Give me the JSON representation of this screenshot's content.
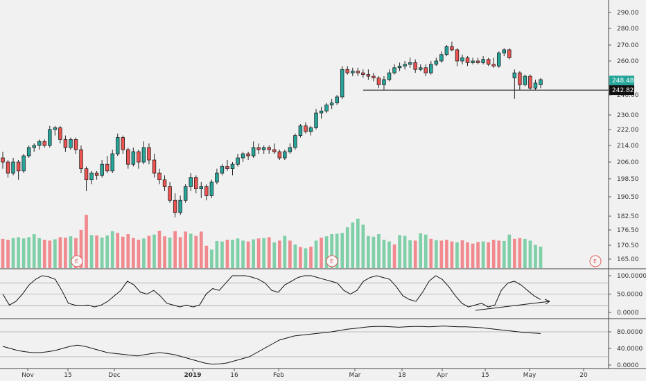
{
  "chart_data": {
    "type": "candlestick",
    "price_axis": {
      "ticks": [
        "290.00",
        "280.00",
        "270.00",
        "260.00",
        "240.00",
        "230.00",
        "222.00",
        "214.00",
        "206.00",
        "198.50",
        "190.50",
        "182.50",
        "176.50",
        "170.50",
        "165.00"
      ],
      "tick_values": [
        290,
        280,
        270,
        260,
        240,
        230,
        222,
        214,
        206,
        198.5,
        190.5,
        182.5,
        176.5,
        170.5,
        165
      ]
    },
    "last_price_tag": {
      "label": "248.48",
      "color": "#26a69a"
    },
    "level_tag": {
      "label": "242.82"
    },
    "level_line": {
      "value": 242.82,
      "from": "Mar 7"
    },
    "date_labels": [
      "Nov",
      "15",
      "Dec",
      "2019",
      "16",
      "Feb",
      "Mar",
      "18",
      "Apr",
      "15",
      "May",
      "20"
    ],
    "earnings_marker": "E",
    "candles": [
      [
        208,
        211,
        203,
        206
      ],
      [
        206,
        207,
        199,
        201
      ],
      [
        201,
        208,
        200,
        206
      ],
      [
        206,
        207,
        198,
        202
      ],
      [
        202,
        210,
        201,
        209
      ],
      [
        209,
        214,
        208,
        213
      ],
      [
        213,
        215,
        211,
        214
      ],
      [
        214,
        217,
        212,
        216
      ],
      [
        216,
        217,
        213,
        214
      ],
      [
        214,
        224,
        213,
        222
      ],
      [
        222,
        224,
        219,
        223
      ],
      [
        223,
        224,
        215,
        217
      ],
      [
        217,
        219,
        211,
        213
      ],
      [
        213,
        218,
        212,
        217
      ],
      [
        217,
        218,
        210,
        212
      ],
      [
        212,
        214,
        201,
        203
      ],
      [
        203,
        204,
        193,
        198
      ],
      [
        198,
        202,
        196,
        201
      ],
      [
        201,
        202,
        198,
        200
      ],
      [
        200,
        207,
        199,
        205
      ],
      [
        205,
        209,
        201,
        202
      ],
      [
        202,
        212,
        201,
        210
      ],
      [
        210,
        220,
        209,
        218
      ],
      [
        218,
        219,
        210,
        212
      ],
      [
        212,
        213,
        203,
        205
      ],
      [
        205,
        213,
        204,
        211
      ],
      [
        211,
        212,
        203,
        206
      ],
      [
        206,
        216,
        205,
        213
      ],
      [
        213,
        215,
        205,
        207
      ],
      [
        207,
        210,
        199,
        201
      ],
      [
        201,
        203,
        196,
        198
      ],
      [
        198,
        200,
        193,
        195
      ],
      [
        195,
        197,
        188,
        189
      ],
      [
        189,
        192,
        182,
        184
      ],
      [
        184,
        191,
        183,
        189
      ],
      [
        189,
        196,
        188,
        195
      ],
      [
        195,
        201,
        193,
        199
      ],
      [
        199,
        200,
        192,
        194
      ],
      [
        194,
        197,
        190,
        195
      ],
      [
        195,
        196,
        189,
        191
      ],
      [
        191,
        198,
        190,
        197
      ],
      [
        197,
        203,
        196,
        201
      ],
      [
        201,
        205,
        200,
        204
      ],
      [
        204,
        207,
        202,
        203
      ],
      [
        203,
        206,
        200,
        205
      ],
      [
        205,
        210,
        204,
        208
      ],
      [
        208,
        211,
        206,
        210
      ],
      [
        210,
        211,
        207,
        209
      ],
      [
        209,
        216,
        208,
        213
      ],
      [
        213,
        215,
        210,
        212
      ],
      [
        212,
        214,
        210,
        213
      ],
      [
        213,
        214,
        210,
        212
      ],
      [
        212,
        215,
        210,
        211
      ],
      [
        211,
        212,
        207,
        208
      ],
      [
        208,
        212,
        207,
        211
      ],
      [
        211,
        215,
        210,
        213
      ],
      [
        213,
        220,
        212,
        219
      ],
      [
        219,
        225,
        218,
        224
      ],
      [
        224,
        226,
        220,
        221
      ],
      [
        221,
        224,
        219,
        223
      ],
      [
        223,
        233,
        222,
        231
      ],
      [
        231,
        234,
        228,
        232
      ],
      [
        232,
        236,
        231,
        235
      ],
      [
        235,
        238,
        233,
        236
      ],
      [
        236,
        240,
        235,
        239
      ],
      [
        239,
        257,
        238,
        255
      ],
      [
        255,
        257,
        252,
        253
      ],
      [
        253,
        256,
        251,
        254
      ],
      [
        254,
        256,
        251,
        253
      ],
      [
        253,
        255,
        250,
        252
      ],
      [
        252,
        255,
        249,
        251
      ],
      [
        251,
        253,
        248,
        250
      ],
      [
        250,
        251,
        244,
        246
      ],
      [
        246,
        251,
        243,
        249
      ],
      [
        249,
        255,
        248,
        253
      ],
      [
        253,
        258,
        252,
        256
      ],
      [
        256,
        259,
        254,
        257
      ],
      [
        257,
        260,
        255,
        258
      ],
      [
        258,
        262,
        256,
        259
      ],
      [
        259,
        261,
        253,
        255
      ],
      [
        255,
        258,
        254,
        256
      ],
      [
        256,
        258,
        251,
        253
      ],
      [
        253,
        260,
        252,
        258
      ],
      [
        258,
        262,
        257,
        260
      ],
      [
        260,
        266,
        259,
        264
      ],
      [
        264,
        270,
        263,
        269
      ],
      [
        269,
        272,
        266,
        267
      ],
      [
        267,
        268,
        257,
        260
      ],
      [
        260,
        264,
        258,
        262
      ],
      [
        262,
        263,
        257,
        259
      ],
      [
        259,
        262,
        258,
        260
      ],
      [
        260,
        262,
        258,
        259
      ],
      [
        259,
        263,
        258,
        261
      ],
      [
        261,
        262,
        257,
        258
      ],
      [
        258,
        262,
        256,
        257
      ],
      [
        257,
        266,
        256,
        265
      ],
      [
        265,
        268,
        263,
        267
      ],
      [
        267,
        268,
        261,
        262
      ],
      [
        250,
        255,
        238,
        253
      ],
      [
        253,
        254,
        243,
        246
      ],
      [
        246,
        252,
        245,
        251
      ],
      [
        251,
        252,
        243,
        244
      ],
      [
        244,
        249,
        243,
        247
      ],
      [
        246,
        250,
        244,
        249
      ]
    ],
    "volumes": [
      [
        68,
        0
      ],
      [
        66,
        0
      ],
      [
        70,
        1
      ],
      [
        72,
        1
      ],
      [
        69,
        1
      ],
      [
        72,
        1
      ],
      [
        79,
        1
      ],
      [
        70,
        1
      ],
      [
        66,
        0
      ],
      [
        64,
        0
      ],
      [
        67,
        1
      ],
      [
        72,
        0
      ],
      [
        71,
        0
      ],
      [
        74,
        1
      ],
      [
        70,
        0
      ],
      [
        89,
        0
      ],
      [
        124,
        0
      ],
      [
        77,
        1
      ],
      [
        76,
        0
      ],
      [
        71,
        1
      ],
      [
        76,
        1
      ],
      [
        86,
        1
      ],
      [
        82,
        0
      ],
      [
        73,
        0
      ],
      [
        79,
        0
      ],
      [
        70,
        0
      ],
      [
        66,
        0
      ],
      [
        69,
        1
      ],
      [
        75,
        0
      ],
      [
        78,
        1
      ],
      [
        87,
        0
      ],
      [
        74,
        0
      ],
      [
        71,
        1
      ],
      [
        86,
        0
      ],
      [
        72,
        0
      ],
      [
        85,
        0
      ],
      [
        80,
        1
      ],
      [
        75,
        0
      ],
      [
        85,
        0
      ],
      [
        52,
        0
      ],
      [
        43,
        1
      ],
      [
        63,
        1
      ],
      [
        62,
        1
      ],
      [
        66,
        0
      ],
      [
        66,
        1
      ],
      [
        69,
        1
      ],
      [
        64,
        1
      ],
      [
        62,
        0
      ],
      [
        67,
        1
      ],
      [
        69,
        0
      ],
      [
        70,
        1
      ],
      [
        72,
        0
      ],
      [
        60,
        1
      ],
      [
        64,
        0
      ],
      [
        75,
        1
      ],
      [
        64,
        0
      ],
      [
        55,
        1
      ],
      [
        49,
        0
      ],
      [
        46,
        1
      ],
      [
        50,
        0
      ],
      [
        64,
        1
      ],
      [
        71,
        0
      ],
      [
        74,
        1
      ],
      [
        79,
        1
      ],
      [
        80,
        1
      ],
      [
        82,
        1
      ],
      [
        95,
        1
      ],
      [
        106,
        1
      ],
      [
        115,
        1
      ],
      [
        101,
        1
      ],
      [
        75,
        1
      ],
      [
        73,
        1
      ],
      [
        79,
        1
      ],
      [
        66,
        1
      ],
      [
        62,
        1
      ],
      [
        55,
        0
      ],
      [
        77,
        1
      ],
      [
        75,
        1
      ],
      [
        65,
        1
      ],
      [
        64,
        0
      ],
      [
        81,
        1
      ],
      [
        78,
        1
      ],
      [
        68,
        0
      ],
      [
        65,
        1
      ],
      [
        64,
        0
      ],
      [
        66,
        0
      ],
      [
        62,
        0
      ],
      [
        60,
        1
      ],
      [
        65,
        0
      ],
      [
        60,
        0
      ],
      [
        57,
        0
      ],
      [
        61,
        0
      ],
      [
        62,
        1
      ],
      [
        60,
        0
      ],
      [
        66,
        0
      ],
      [
        64,
        0
      ],
      [
        63,
        1
      ],
      [
        78,
        1
      ],
      [
        68,
        0
      ],
      [
        70,
        0
      ],
      [
        68,
        1
      ],
      [
        64,
        1
      ],
      [
        54,
        1
      ],
      [
        50,
        1
      ]
    ],
    "oscillator_axis": {
      "ticks": [
        "100.0000",
        "50.0000",
        "0.0000"
      ],
      "values": [
        100,
        50,
        0
      ]
    },
    "oscillator_line": [
      50,
      20,
      30,
      50,
      75,
      90,
      100,
      97,
      90,
      60,
      25,
      20,
      18,
      20,
      15,
      20,
      30,
      45,
      60,
      85,
      75,
      55,
      50,
      60,
      45,
      25,
      20,
      15,
      20,
      15,
      20,
      50,
      65,
      60,
      80,
      100,
      100,
      100,
      96,
      90,
      80,
      60,
      55,
      75,
      85,
      95,
      100,
      100,
      95,
      90,
      85,
      80,
      60,
      50,
      60,
      85,
      95,
      100,
      95,
      90,
      70,
      45,
      35,
      30,
      55,
      85,
      100,
      90,
      70,
      45,
      25,
      15,
      20,
      25,
      15,
      20,
      60,
      80,
      85,
      75,
      60,
      45,
      35
    ],
    "trendline_osc": {
      "from": 12,
      "to": 27
    },
    "second_axis": {
      "ticks": [
        "80.0000",
        "40.0000",
        "0.0000"
      ],
      "values": [
        80,
        40,
        0
      ]
    },
    "second_line": [
      45,
      40,
      35,
      32,
      30,
      30,
      32,
      35,
      40,
      45,
      48,
      45,
      40,
      35,
      30,
      28,
      26,
      24,
      22,
      25,
      28,
      30,
      28,
      25,
      20,
      15,
      10,
      5,
      2,
      3,
      5,
      10,
      15,
      20,
      30,
      40,
      50,
      60,
      65,
      70,
      72,
      74,
      76,
      78,
      80,
      83,
      86,
      88,
      90,
      92,
      93,
      93,
      92,
      91,
      92,
      93,
      93,
      92,
      93,
      94,
      93,
      92,
      92,
      91,
      90,
      88,
      86,
      84,
      82,
      80,
      78,
      77,
      76
    ]
  }
}
